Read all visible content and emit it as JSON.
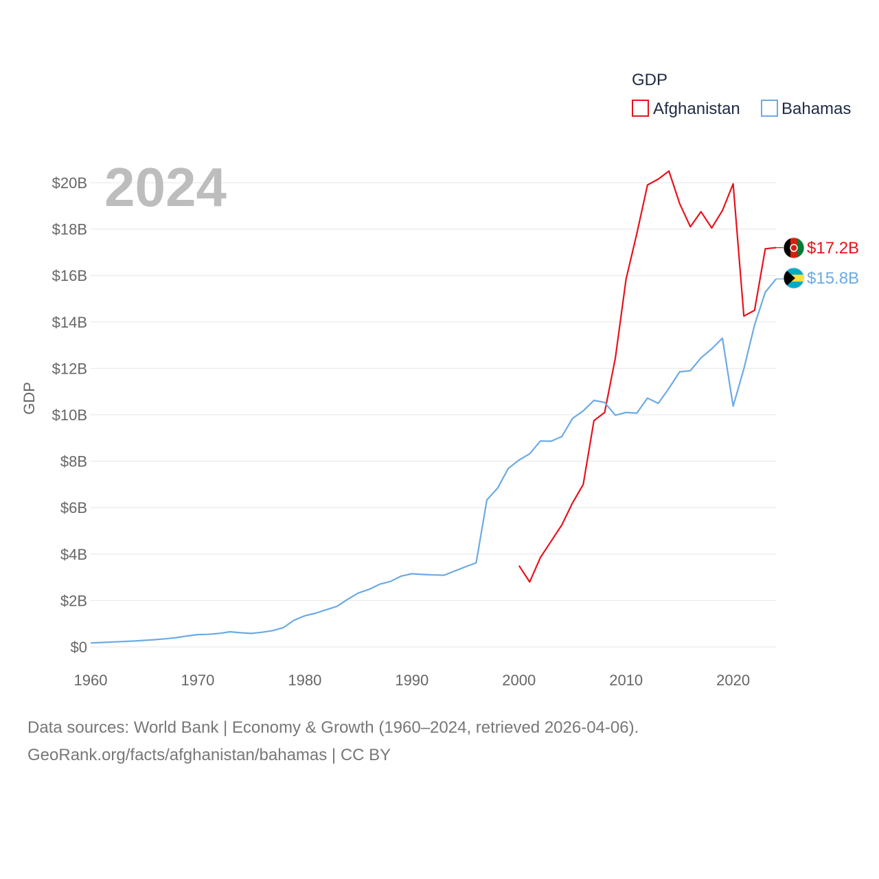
{
  "colors": {
    "afghanistan": "#e8111a",
    "bahamas": "#6aaae4",
    "grid": "#e6e6e6",
    "year": "#bdbdbd"
  },
  "chart_data": {
    "type": "line",
    "title": "",
    "year_label": "2024",
    "legend_title": "GDP",
    "xlabel": "",
    "ylabel": "GDP",
    "xlim": [
      1960,
      2024
    ],
    "ylim": [
      0,
      21
    ],
    "x_ticks": [
      1960,
      1970,
      1980,
      1990,
      2000,
      2010,
      2020
    ],
    "y_ticks": [
      0,
      2,
      4,
      6,
      8,
      10,
      12,
      14,
      16,
      18,
      20
    ],
    "y_tick_labels": [
      "$0",
      "$2B",
      "$4B",
      "$6B",
      "$8B",
      "$10B",
      "$12B",
      "$14B",
      "$16B",
      "$18B",
      "$20B"
    ],
    "series": [
      {
        "name": "Afghanistan",
        "color": "#e8111a",
        "end_label": "$17.2B",
        "flag_icon": "afghanistan-flag-icon",
        "x": [
          2000,
          2001,
          2002,
          2003,
          2004,
          2005,
          2006,
          2007,
          2008,
          2009,
          2010,
          2011,
          2012,
          2013,
          2014,
          2015,
          2016,
          2017,
          2018,
          2019,
          2020,
          2021,
          2022,
          2023,
          2024
        ],
        "values": [
          3.5,
          2.8,
          3.85,
          4.55,
          5.25,
          6.2,
          7.0,
          9.75,
          10.1,
          12.45,
          15.85,
          17.8,
          19.9,
          20.15,
          20.5,
          19.1,
          18.1,
          18.75,
          18.05,
          18.8,
          19.95,
          14.25,
          14.5,
          17.15,
          17.2
        ]
      },
      {
        "name": "Bahamas",
        "color": "#6aaae4",
        "end_label": "$15.8B",
        "flag_icon": "bahamas-flag-icon",
        "x": [
          1960,
          1961,
          1962,
          1963,
          1964,
          1965,
          1966,
          1967,
          1968,
          1969,
          1970,
          1971,
          1972,
          1973,
          1974,
          1975,
          1976,
          1977,
          1978,
          1979,
          1980,
          1981,
          1982,
          1983,
          1984,
          1985,
          1986,
          1987,
          1988,
          1989,
          1990,
          1991,
          1992,
          1993,
          1994,
          1995,
          1996,
          1997,
          1998,
          1999,
          2000,
          2001,
          2002,
          2003,
          2004,
          2005,
          2006,
          2007,
          2008,
          2009,
          2010,
          2011,
          2012,
          2013,
          2014,
          2015,
          2016,
          2017,
          2018,
          2019,
          2020,
          2021,
          2022,
          2023,
          2024
        ],
        "values": [
          0.17,
          0.19,
          0.21,
          0.23,
          0.25,
          0.28,
          0.31,
          0.35,
          0.4,
          0.47,
          0.53,
          0.54,
          0.58,
          0.65,
          0.61,
          0.58,
          0.63,
          0.7,
          0.83,
          1.15,
          1.34,
          1.45,
          1.6,
          1.75,
          2.05,
          2.32,
          2.48,
          2.7,
          2.82,
          3.05,
          3.15,
          3.12,
          3.1,
          3.09,
          3.27,
          3.45,
          3.62,
          6.33,
          6.84,
          7.69,
          8.05,
          8.32,
          8.87,
          8.86,
          9.06,
          9.84,
          10.17,
          10.62,
          10.53,
          9.98,
          10.1,
          10.07,
          10.72,
          10.49,
          11.14,
          11.85,
          11.9,
          12.45,
          12.84,
          13.3,
          10.37,
          11.98,
          13.87,
          15.28,
          15.85
        ]
      }
    ]
  },
  "source": {
    "line1": "Data sources: World Bank | Economy & Growth (1960–2024, retrieved 2026-04-06).",
    "line2": "GeoRank.org/facts/afghanistan/bahamas | CC BY"
  }
}
